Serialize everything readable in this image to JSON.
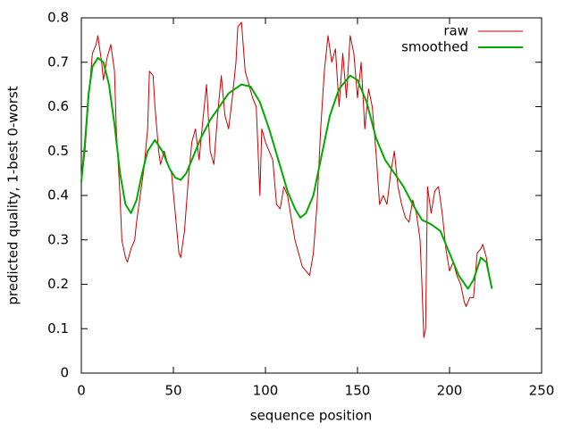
{
  "chart_data": {
    "type": "line",
    "xlabel": "sequence position",
    "ylabel": "predicted quality, 1-best 0-worst",
    "xlim": [
      0,
      250
    ],
    "xticks": [
      0,
      50,
      100,
      150,
      200,
      250
    ],
    "ylim": [
      0,
      0.8
    ],
    "yticks": [
      0,
      0.1,
      0.2,
      0.3,
      0.4,
      0.5,
      0.6,
      0.7,
      0.8
    ],
    "legend": "top-right",
    "series": [
      {
        "name": "raw",
        "color": "#cc0000",
        "x": [
          0,
          2,
          4,
          6,
          8,
          9,
          11,
          12,
          14,
          16,
          18,
          19,
          21,
          22,
          24,
          25,
          27,
          29,
          30,
          32,
          34,
          36,
          37,
          39,
          40,
          42,
          43,
          45,
          47,
          49,
          51,
          53,
          54,
          56,
          58,
          60,
          62,
          64,
          66,
          68,
          70,
          72,
          74,
          76,
          78,
          80,
          82,
          84,
          85,
          87,
          89,
          91,
          93,
          95,
          97,
          98,
          100,
          102,
          104,
          106,
          108,
          110,
          112,
          114,
          116,
          118,
          120,
          122,
          124,
          126,
          128,
          130,
          132,
          134,
          136,
          138,
          140,
          142,
          144,
          146,
          148,
          150,
          152,
          154,
          156,
          158,
          160,
          162,
          164,
          166,
          168,
          170,
          172,
          174,
          176,
          178,
          180,
          182,
          184,
          185,
          186,
          187,
          188,
          190,
          192,
          194,
          196,
          198,
          200,
          202,
          204,
          206,
          208,
          209,
          211,
          213,
          215,
          217,
          218,
          220,
          222,
          223
        ],
        "values": [
          0.43,
          0.5,
          0.62,
          0.72,
          0.74,
          0.76,
          0.7,
          0.66,
          0.71,
          0.74,
          0.68,
          0.55,
          0.4,
          0.3,
          0.26,
          0.25,
          0.28,
          0.3,
          0.34,
          0.4,
          0.46,
          0.55,
          0.68,
          0.67,
          0.6,
          0.5,
          0.47,
          0.5,
          0.47,
          0.45,
          0.36,
          0.27,
          0.26,
          0.32,
          0.43,
          0.52,
          0.55,
          0.48,
          0.57,
          0.65,
          0.5,
          0.47,
          0.58,
          0.67,
          0.58,
          0.55,
          0.62,
          0.7,
          0.78,
          0.79,
          0.68,
          0.65,
          0.62,
          0.6,
          0.4,
          0.55,
          0.52,
          0.5,
          0.48,
          0.38,
          0.37,
          0.42,
          0.4,
          0.35,
          0.3,
          0.27,
          0.24,
          0.23,
          0.22,
          0.27,
          0.38,
          0.55,
          0.68,
          0.76,
          0.7,
          0.73,
          0.6,
          0.72,
          0.62,
          0.76,
          0.72,
          0.62,
          0.7,
          0.55,
          0.64,
          0.6,
          0.5,
          0.38,
          0.4,
          0.38,
          0.45,
          0.5,
          0.42,
          0.38,
          0.35,
          0.34,
          0.39,
          0.36,
          0.3,
          0.2,
          0.08,
          0.1,
          0.42,
          0.36,
          0.41,
          0.42,
          0.36,
          0.28,
          0.23,
          0.25,
          0.22,
          0.2,
          0.16,
          0.15,
          0.17,
          0.17,
          0.27,
          0.28,
          0.29,
          0.26,
          0.21,
          0.19
        ]
      },
      {
        "name": "smoothed",
        "color": "#00aa00",
        "x": [
          0,
          2,
          4,
          6,
          9,
          12,
          15,
          18,
          21,
          24,
          27,
          30,
          33,
          36,
          40,
          44,
          48,
          51,
          54,
          57,
          60,
          65,
          70,
          75,
          80,
          87,
          92,
          97,
          102,
          107,
          112,
          116,
          119,
          122,
          126,
          130,
          135,
          140,
          146,
          150,
          155,
          160,
          165,
          170,
          175,
          180,
          185,
          190,
          195,
          200,
          205,
          210,
          213,
          217,
          220,
          223
        ],
        "values": [
          0.43,
          0.52,
          0.63,
          0.69,
          0.71,
          0.7,
          0.65,
          0.56,
          0.45,
          0.38,
          0.36,
          0.39,
          0.45,
          0.5,
          0.525,
          0.5,
          0.46,
          0.44,
          0.435,
          0.45,
          0.48,
          0.53,
          0.57,
          0.6,
          0.63,
          0.65,
          0.645,
          0.61,
          0.55,
          0.48,
          0.41,
          0.37,
          0.35,
          0.36,
          0.4,
          0.48,
          0.58,
          0.64,
          0.67,
          0.66,
          0.61,
          0.53,
          0.48,
          0.45,
          0.42,
          0.38,
          0.345,
          0.335,
          0.32,
          0.27,
          0.22,
          0.19,
          0.21,
          0.26,
          0.25,
          0.19
        ]
      }
    ]
  }
}
